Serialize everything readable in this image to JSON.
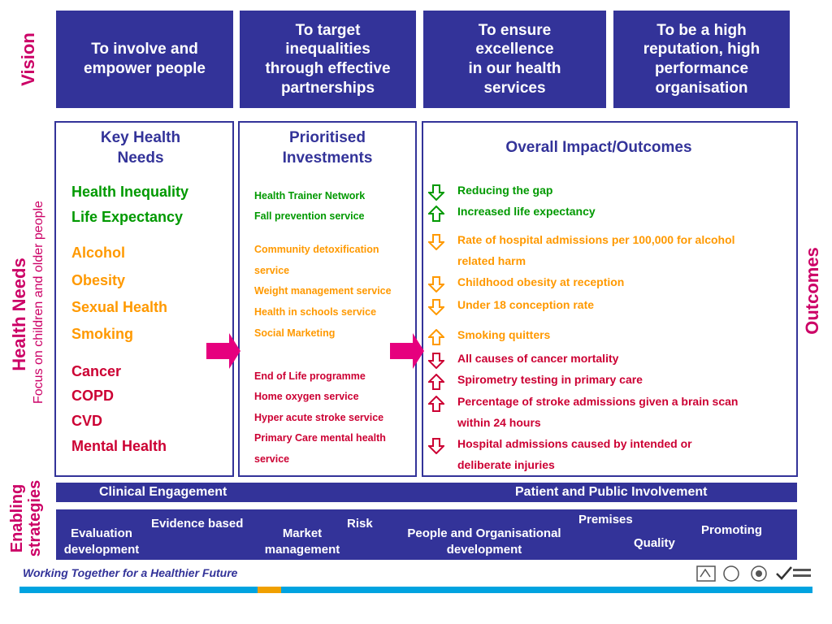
{
  "colors": {
    "navy": "#333399",
    "green": "#009900",
    "orange": "#ff9900",
    "crimson": "#cc0033",
    "magenta": "#e6007e"
  },
  "vision": {
    "label": "Vision",
    "boxes": [
      "To involve and\nempower people",
      "To target\ninequalities\nthrough effective\npartnerships",
      "To ensure\nexcellence\nin our health\nservices",
      "To be a high\nreputation, high\nperformance\norganisation"
    ]
  },
  "health_needs": {
    "label": "Health Needs",
    "sublabel": "Focus on children and older people",
    "title": "Key Health\nNeeds",
    "green": [
      "Health Inequality",
      "Life Expectancy"
    ],
    "orange": [
      "Alcohol",
      "Obesity",
      "Sexual Health",
      "Smoking"
    ],
    "crimson": [
      "Cancer",
      "COPD",
      "CVD",
      "Mental Health"
    ]
  },
  "investments": {
    "title": "Prioritised\nInvestments",
    "green": [
      "Health Trainer Network",
      "Fall prevention service"
    ],
    "orange": [
      "Community detoxification",
      "service",
      "Weight management service",
      "Health in schools service",
      "Social Marketing"
    ],
    "crimson": [
      "End of Life programme",
      "Home oxygen service",
      "Hyper acute stroke service",
      "Primary Care mental health",
      "service"
    ]
  },
  "outcomes": {
    "label": "Outcomes",
    "title": "Overall Impact/Outcomes",
    "items": [
      {
        "text": "Reducing the gap",
        "color": "green",
        "arrow": "down"
      },
      {
        "text": "Increased life expectancy",
        "color": "green",
        "arrow": "up"
      },
      {
        "text": "Rate of hospital admissions per 100,000 for alcohol",
        "color": "orange",
        "arrow": "down"
      },
      {
        "text": "related harm",
        "color": "orange",
        "arrow": "none"
      },
      {
        "text": "Childhood obesity at reception",
        "color": "orange",
        "arrow": "down"
      },
      {
        "text": "Under 18 conception rate",
        "color": "orange",
        "arrow": "down"
      },
      {
        "text": "Smoking quitters",
        "color": "orange",
        "arrow": "up"
      },
      {
        "text": "All causes of cancer mortality",
        "color": "crimson",
        "arrow": "down"
      },
      {
        "text": "Spirometry testing in primary care",
        "color": "crimson",
        "arrow": "up"
      },
      {
        "text": "Percentage of stroke admissions given a brain scan",
        "color": "crimson",
        "arrow": "up"
      },
      {
        "text": "within 24 hours",
        "color": "crimson",
        "arrow": "none"
      },
      {
        "text": "Hospital admissions caused by intended or",
        "color": "crimson",
        "arrow": "down"
      },
      {
        "text": "deliberate injuries",
        "color": "crimson",
        "arrow": "none"
      }
    ]
  },
  "enabling": {
    "label": "Enabling\nstrategies",
    "bar1": {
      "left": "Clinical Engagement",
      "right": "Patient and Public Involvement"
    },
    "items": [
      "Evaluation\ndevelopment",
      "Evidence based",
      "Market\nmanagement",
      "Risk",
      "People and Organisational\ndevelopment",
      "Premises",
      "Quality",
      "Promoting"
    ]
  },
  "footer": {
    "slogan": "Working Together for a Healthier Future"
  }
}
